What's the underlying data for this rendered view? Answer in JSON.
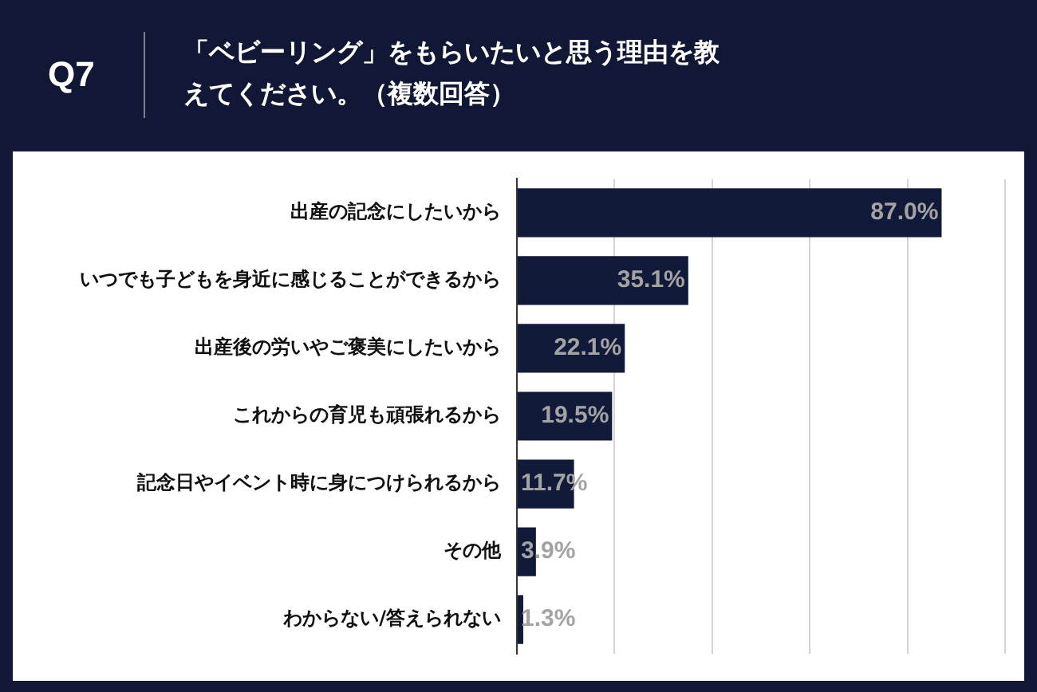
{
  "chart_data": {
    "type": "bar",
    "orientation": "horizontal",
    "title": "「ベビーリング」をもらいたいと思う理由を教えてください。（複数回答）",
    "annotations": [
      "Q7"
    ],
    "categories": [
      "出産の記念にしたいから",
      "いつでも子どもを身近に感じることができるから",
      "出産後の労いやご褒美にしたいから",
      "これからの育児も頑張れるから",
      "記念日やイベント時に身につけられるから",
      "その他",
      "わからない/答えられない"
    ],
    "values": [
      87.0,
      35.1,
      22.1,
      19.5,
      11.7,
      3.9,
      1.3
    ],
    "value_labels": [
      "87.0%",
      "35.1%",
      "22.1%",
      "19.5%",
      "11.7%",
      "3.9%",
      "1.3%"
    ],
    "color": "#121a3a",
    "xlim": [
      0,
      100
    ],
    "xticks": [
      {
        "value": 0,
        "label": null
      },
      {
        "value": 20,
        "label": null
      },
      {
        "value": 40,
        "label": null
      },
      {
        "value": 60,
        "label": null
      },
      {
        "value": 80,
        "label": null
      },
      {
        "value": 100,
        "label": null
      }
    ],
    "grid": "x",
    "tick_labels": "y",
    "legend": false
  }
}
